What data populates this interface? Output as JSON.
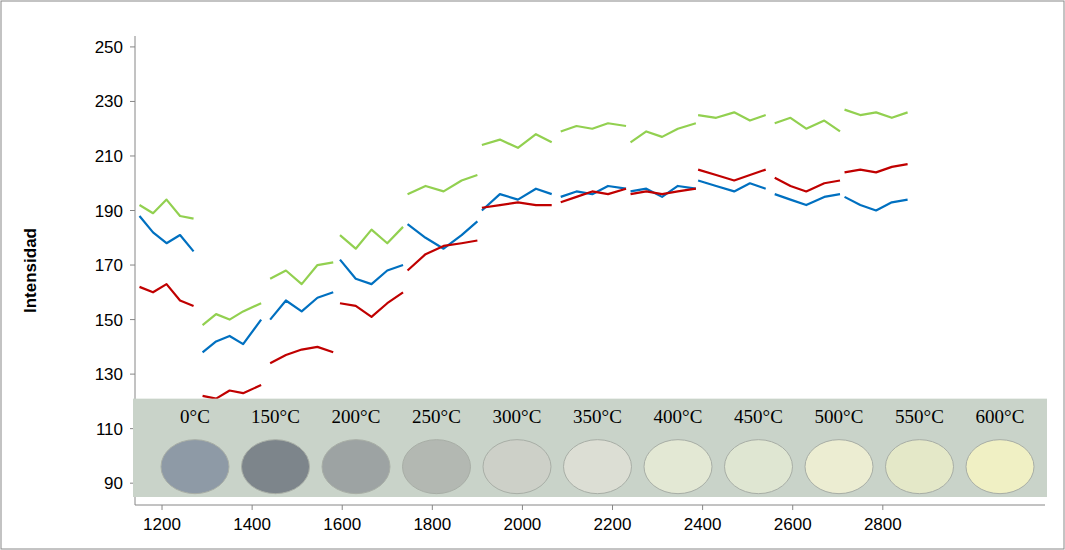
{
  "chart_data": {
    "type": "line",
    "y_label": "Intensidad",
    "annotations": [
      "0°C",
      "150°C",
      "200°C",
      "250°C",
      "300°C",
      "350°C",
      "400°C",
      "450°C",
      "500°C",
      "550°C",
      "600°C"
    ],
    "xlim": [
      1140,
      3160
    ],
    "xticks": [
      1200,
      1400,
      1600,
      1800,
      2000,
      2200,
      2400,
      2600,
      2800
    ],
    "ylim": [
      82,
      254
    ],
    "yticks": [
      90,
      110,
      130,
      150,
      170,
      190,
      210,
      230,
      250
    ],
    "grid": false,
    "x": [
      1150,
      1180,
      1210,
      1240,
      1270,
      1280,
      1290,
      1320,
      1350,
      1380,
      1420,
      1430,
      1440,
      1475,
      1510,
      1545,
      1580,
      1588,
      1595,
      1630,
      1665,
      1700,
      1735,
      1740,
      1745,
      1785,
      1825,
      1865,
      1900,
      1905,
      1910,
      1950,
      1990,
      2030,
      2065,
      2075,
      2085,
      2120,
      2155,
      2190,
      2230,
      2235,
      2240,
      2275,
      2310,
      2345,
      2385,
      2387,
      2390,
      2430,
      2470,
      2505,
      2540,
      2550,
      2560,
      2595,
      2630,
      2670,
      2705,
      2710,
      2715,
      2750,
      2785,
      2820,
      2855
    ],
    "series": [
      {
        "color": "#92d050",
        "values": [
          192,
          189,
          194,
          188,
          187,
          null,
          148,
          152,
          150,
          153,
          156,
          null,
          165,
          168,
          163,
          170,
          171,
          null,
          181,
          176,
          183,
          178,
          184,
          null,
          196,
          199,
          197,
          201,
          203,
          null,
          214,
          216,
          213,
          218,
          215,
          null,
          219,
          221,
          220,
          222,
          221,
          null,
          215,
          219,
          217,
          220,
          222,
          null,
          225,
          224,
          226,
          223,
          225,
          null,
          222,
          224,
          220,
          223,
          219,
          null,
          227,
          225,
          226,
          224,
          226
        ]
      },
      {
        "color": "#0070c0",
        "values": [
          188,
          182,
          178,
          181,
          175,
          null,
          138,
          142,
          144,
          141,
          150,
          null,
          150,
          157,
          153,
          158,
          160,
          null,
          172,
          165,
          163,
          168,
          170,
          null,
          185,
          180,
          176,
          181,
          186,
          null,
          190,
          196,
          194,
          198,
          196,
          null,
          195,
          197,
          196,
          199,
          198,
          null,
          197,
          198,
          195,
          199,
          198,
          null,
          201,
          199,
          197,
          200,
          198,
          null,
          196,
          194,
          192,
          195,
          196,
          null,
          195,
          192,
          190,
          193,
          194
        ]
      },
      {
        "color": "#c00000",
        "values": [
          162,
          160,
          163,
          157,
          155,
          null,
          122,
          121,
          124,
          123,
          126,
          null,
          134,
          137,
          139,
          140,
          138,
          null,
          156,
          155,
          151,
          156,
          160,
          null,
          168,
          174,
          177,
          178,
          179,
          null,
          191,
          192,
          193,
          192,
          192,
          null,
          193,
          195,
          197,
          196,
          198,
          null,
          196,
          197,
          196,
          197,
          198,
          null,
          205,
          203,
          201,
          203,
          205,
          null,
          202,
          199,
          197,
          200,
          201,
          null,
          204,
          205,
          204,
          206,
          207
        ]
      }
    ]
  }
}
